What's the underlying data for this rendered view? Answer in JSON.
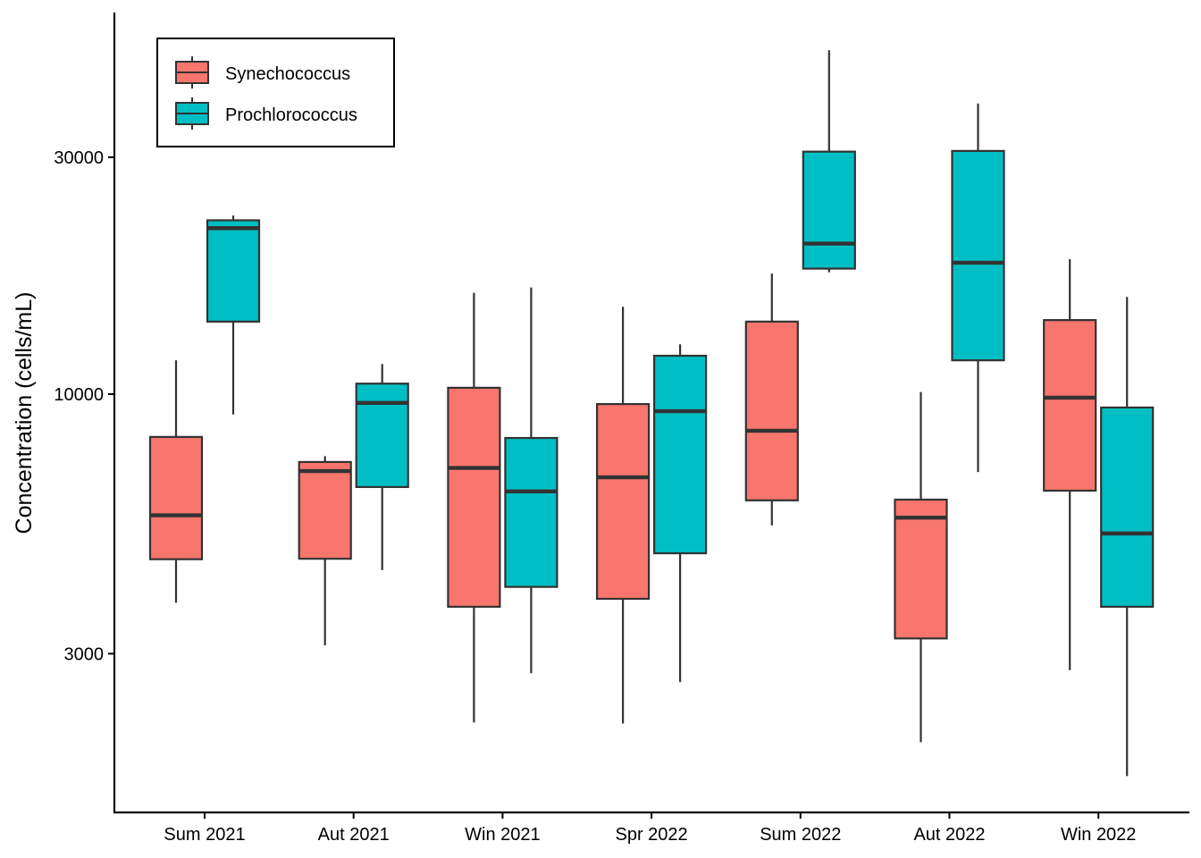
{
  "chart_data": {
    "type": "boxplot",
    "title": "",
    "xlabel": "",
    "ylabel": "Concentration (cells/mL)",
    "yscale": "log10",
    "ylim": [
      1550,
      62000
    ],
    "yticks": [
      3000,
      10000,
      30000
    ],
    "ytick_labels": [
      "3000",
      "10000",
      "30000"
    ],
    "categories": [
      "Sum 2021",
      "Aut 2021",
      "Win 2021",
      "Spr 2022",
      "Sum 2022",
      "Aut 2022",
      "Win 2022"
    ],
    "grid": false,
    "legend": {
      "position": "top-left",
      "entries": [
        "Synechococcus",
        "Prochlorococcus"
      ]
    },
    "series": [
      {
        "name": "Synechococcus",
        "color": "#F8766D",
        "boxes": [
          {
            "whisker_low": 3800,
            "q1": 4650,
            "median": 5700,
            "q3": 8200,
            "whisker_high": 11700
          },
          {
            "whisker_low": 3120,
            "q1": 4660,
            "median": 7000,
            "q3": 7300,
            "whisker_high": 7500
          },
          {
            "whisker_low": 2180,
            "q1": 3730,
            "median": 7100,
            "q3": 10300,
            "whisker_high": 16000
          },
          {
            "whisker_low": 2170,
            "q1": 3870,
            "median": 6800,
            "q3": 9550,
            "whisker_high": 15000
          },
          {
            "whisker_low": 5440,
            "q1": 6110,
            "median": 8440,
            "q3": 14000,
            "whisker_high": 17500
          },
          {
            "whisker_low": 1990,
            "q1": 3220,
            "median": 5640,
            "q3": 6130,
            "whisker_high": 10100
          },
          {
            "whisker_low": 2780,
            "q1": 6390,
            "median": 9840,
            "q3": 14100,
            "whisker_high": 18700
          }
        ]
      },
      {
        "name": "Prochlorococcus",
        "color": "#00BFC4",
        "boxes": [
          {
            "whisker_low": 9100,
            "q1": 14000,
            "median": 21600,
            "q3": 22400,
            "whisker_high": 22900
          },
          {
            "whisker_low": 4420,
            "q1": 6500,
            "median": 9600,
            "q3": 10500,
            "whisker_high": 11500
          },
          {
            "whisker_low": 2740,
            "q1": 4090,
            "median": 6370,
            "q3": 8160,
            "whisker_high": 16400
          },
          {
            "whisker_low": 2630,
            "q1": 4780,
            "median": 9240,
            "q3": 11950,
            "whisker_high": 12600
          },
          {
            "whisker_low": 17600,
            "q1": 17900,
            "median": 20100,
            "q3": 30800,
            "whisker_high": 49300
          },
          {
            "whisker_low": 6970,
            "q1": 11700,
            "median": 18400,
            "q3": 30900,
            "whisker_high": 38500
          },
          {
            "whisker_low": 1700,
            "q1": 3730,
            "median": 5240,
            "q3": 9400,
            "whisker_high": 15700
          }
        ]
      }
    ]
  }
}
